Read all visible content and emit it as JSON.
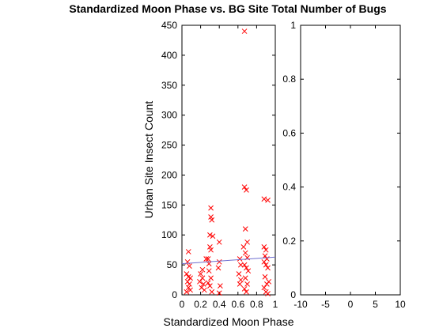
{
  "chart_data": [
    {
      "type": "scatter",
      "title": "Standardized Moon Phase vs. BG Site Total Number of Bugs",
      "xlabel": "Standardized Moon Phase",
      "ylabel": "Urban Site Insect Count",
      "xlim": [
        0,
        1
      ],
      "ylim": [
        0,
        450
      ],
      "x_ticks": [
        "0",
        "0.2",
        "0.4",
        "0.6",
        "0.8",
        "1"
      ],
      "y_ticks": [
        "0",
        "50",
        "100",
        "150",
        "200",
        "250",
        "300",
        "350",
        "400",
        "450"
      ],
      "grid": false,
      "marker": "x",
      "marker_color": "#ff0000",
      "points": [
        {
          "x": 0.07,
          "y": 72
        },
        {
          "x": 0.06,
          "y": 55
        },
        {
          "x": 0.08,
          "y": 48
        },
        {
          "x": 0.05,
          "y": 35
        },
        {
          "x": 0.07,
          "y": 30
        },
        {
          "x": 0.09,
          "y": 28
        },
        {
          "x": 0.06,
          "y": 22
        },
        {
          "x": 0.08,
          "y": 18
        },
        {
          "x": 0.07,
          "y": 12
        },
        {
          "x": 0.09,
          "y": 8
        },
        {
          "x": 0.05,
          "y": 5
        },
        {
          "x": 0.2,
          "y": 35
        },
        {
          "x": 0.22,
          "y": 28
        },
        {
          "x": 0.19,
          "y": 22
        },
        {
          "x": 0.23,
          "y": 18
        },
        {
          "x": 0.21,
          "y": 12
        },
        {
          "x": 0.24,
          "y": 8
        },
        {
          "x": 0.22,
          "y": 42
        },
        {
          "x": 0.26,
          "y": 60
        },
        {
          "x": 0.29,
          "y": 52
        },
        {
          "x": 0.28,
          "y": 60
        },
        {
          "x": 0.3,
          "y": 80
        },
        {
          "x": 0.31,
          "y": 75
        },
        {
          "x": 0.3,
          "y": 100
        },
        {
          "x": 0.32,
          "y": 125
        },
        {
          "x": 0.31,
          "y": 130
        },
        {
          "x": 0.31,
          "y": 145
        },
        {
          "x": 0.33,
          "y": 98
        },
        {
          "x": 0.29,
          "y": 40
        },
        {
          "x": 0.31,
          "y": 28
        },
        {
          "x": 0.3,
          "y": 15
        },
        {
          "x": 0.32,
          "y": 5
        },
        {
          "x": 0.28,
          "y": 20
        },
        {
          "x": 0.4,
          "y": 88
        },
        {
          "x": 0.4,
          "y": 55
        },
        {
          "x": 0.39,
          "y": 45
        },
        {
          "x": 0.41,
          "y": 15
        },
        {
          "x": 0.4,
          "y": 3
        },
        {
          "x": 0.62,
          "y": 60
        },
        {
          "x": 0.63,
          "y": 50
        },
        {
          "x": 0.61,
          "y": 35
        },
        {
          "x": 0.63,
          "y": 25
        },
        {
          "x": 0.62,
          "y": 18
        },
        {
          "x": 0.67,
          "y": 440
        },
        {
          "x": 0.67,
          "y": 180
        },
        {
          "x": 0.69,
          "y": 175
        },
        {
          "x": 0.68,
          "y": 110
        },
        {
          "x": 0.7,
          "y": 88
        },
        {
          "x": 0.66,
          "y": 80
        },
        {
          "x": 0.68,
          "y": 70
        },
        {
          "x": 0.7,
          "y": 62
        },
        {
          "x": 0.67,
          "y": 50
        },
        {
          "x": 0.69,
          "y": 45
        },
        {
          "x": 0.71,
          "y": 40
        },
        {
          "x": 0.68,
          "y": 28
        },
        {
          "x": 0.7,
          "y": 18
        },
        {
          "x": 0.67,
          "y": 10
        },
        {
          "x": 0.69,
          "y": 5
        },
        {
          "x": 0.88,
          "y": 160
        },
        {
          "x": 0.92,
          "y": 158
        },
        {
          "x": 0.88,
          "y": 80
        },
        {
          "x": 0.9,
          "y": 75
        },
        {
          "x": 0.89,
          "y": 65
        },
        {
          "x": 0.91,
          "y": 60
        },
        {
          "x": 0.88,
          "y": 55
        },
        {
          "x": 0.9,
          "y": 50
        },
        {
          "x": 0.92,
          "y": 45
        },
        {
          "x": 0.89,
          "y": 30
        },
        {
          "x": 0.93,
          "y": 22
        },
        {
          "x": 0.91,
          "y": 18
        },
        {
          "x": 0.88,
          "y": 12
        },
        {
          "x": 0.9,
          "y": 5
        },
        {
          "x": 0.92,
          "y": 2
        }
      ],
      "fit_line": {
        "x": [
          0,
          1
        ],
        "y": [
          52,
          63
        ],
        "color": "#6f6fd0"
      }
    },
    {
      "type": "scatter",
      "xlim": [
        -10,
        10
      ],
      "ylim": [
        0,
        1
      ],
      "x_ticks": [
        "-10",
        "-5",
        "0",
        "5",
        "10"
      ],
      "y_ticks": [
        "0",
        "0.2",
        "0.4",
        "0.6",
        "0.8",
        "1"
      ],
      "grid": false,
      "points": []
    }
  ]
}
